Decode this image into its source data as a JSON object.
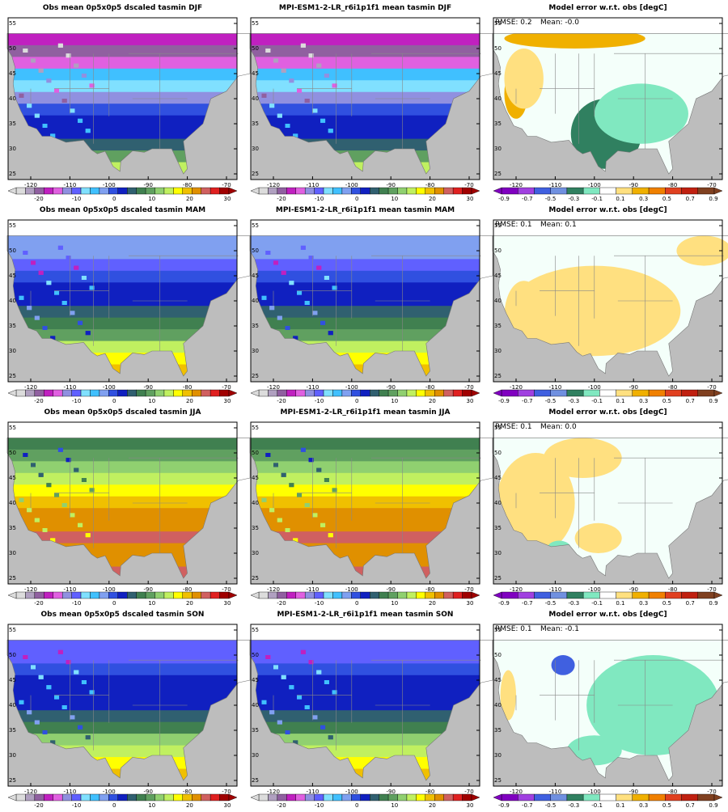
{
  "rows": [
    {
      "panels": [
        {
          "title": "Obs mean 0p5x0p5 dscaled tasmin DJF"
        },
        {
          "title": "MPI-ESM1-2-LR_r6i1p1f1 mean tasmin DJF"
        },
        {
          "title": "Model error w.r.t. obs [degC]",
          "rmse": "RMSE: 0.2",
          "mean": "Mean: -0.0"
        }
      ]
    },
    {
      "panels": [
        {
          "title": "Obs mean 0p5x0p5 dscaled tasmin MAM"
        },
        {
          "title": "MPI-ESM1-2-LR_r6i1p1f1 mean tasmin MAM"
        },
        {
          "title": "Model error w.r.t. obs [degC]",
          "rmse": "RMSE: 0.1",
          "mean": "Mean: 0.1"
        }
      ]
    },
    {
      "panels": [
        {
          "title": "Obs mean 0p5x0p5 dscaled tasmin JJA"
        },
        {
          "title": "MPI-ESM1-2-LR_r6i1p1f1 mean tasmin JJA"
        },
        {
          "title": "Model error w.r.t. obs [degC]",
          "rmse": "RMSE: 0.1",
          "mean": "Mean: 0.0"
        }
      ]
    },
    {
      "panels": [
        {
          "title": "Obs mean 0p5x0p5 dscaled tasmin SON"
        },
        {
          "title": "MPI-ESM1-2-LR_r6i1p1f1 mean tasmin SON"
        },
        {
          "title": "Model error w.r.t. obs [degC]",
          "rmse": "RMSE: 0.1",
          "mean": "Mean: -0.1"
        }
      ]
    }
  ],
  "lat_ticks": [
    "55",
    "50",
    "45",
    "40",
    "35",
    "30",
    "25"
  ],
  "lon_ticks": [
    "-120",
    "-110",
    "-100",
    "-90",
    "-80",
    "-70"
  ],
  "mean_colorbar_labels": [
    "-20",
    "-10",
    "0",
    "10",
    "20",
    "30"
  ],
  "error_colorbar_labels": [
    "-0.9",
    "-0.7",
    "-0.5",
    "-0.3",
    "-0.1",
    "0.1",
    "0.3",
    "0.5",
    "0.7",
    "0.9"
  ]
}
